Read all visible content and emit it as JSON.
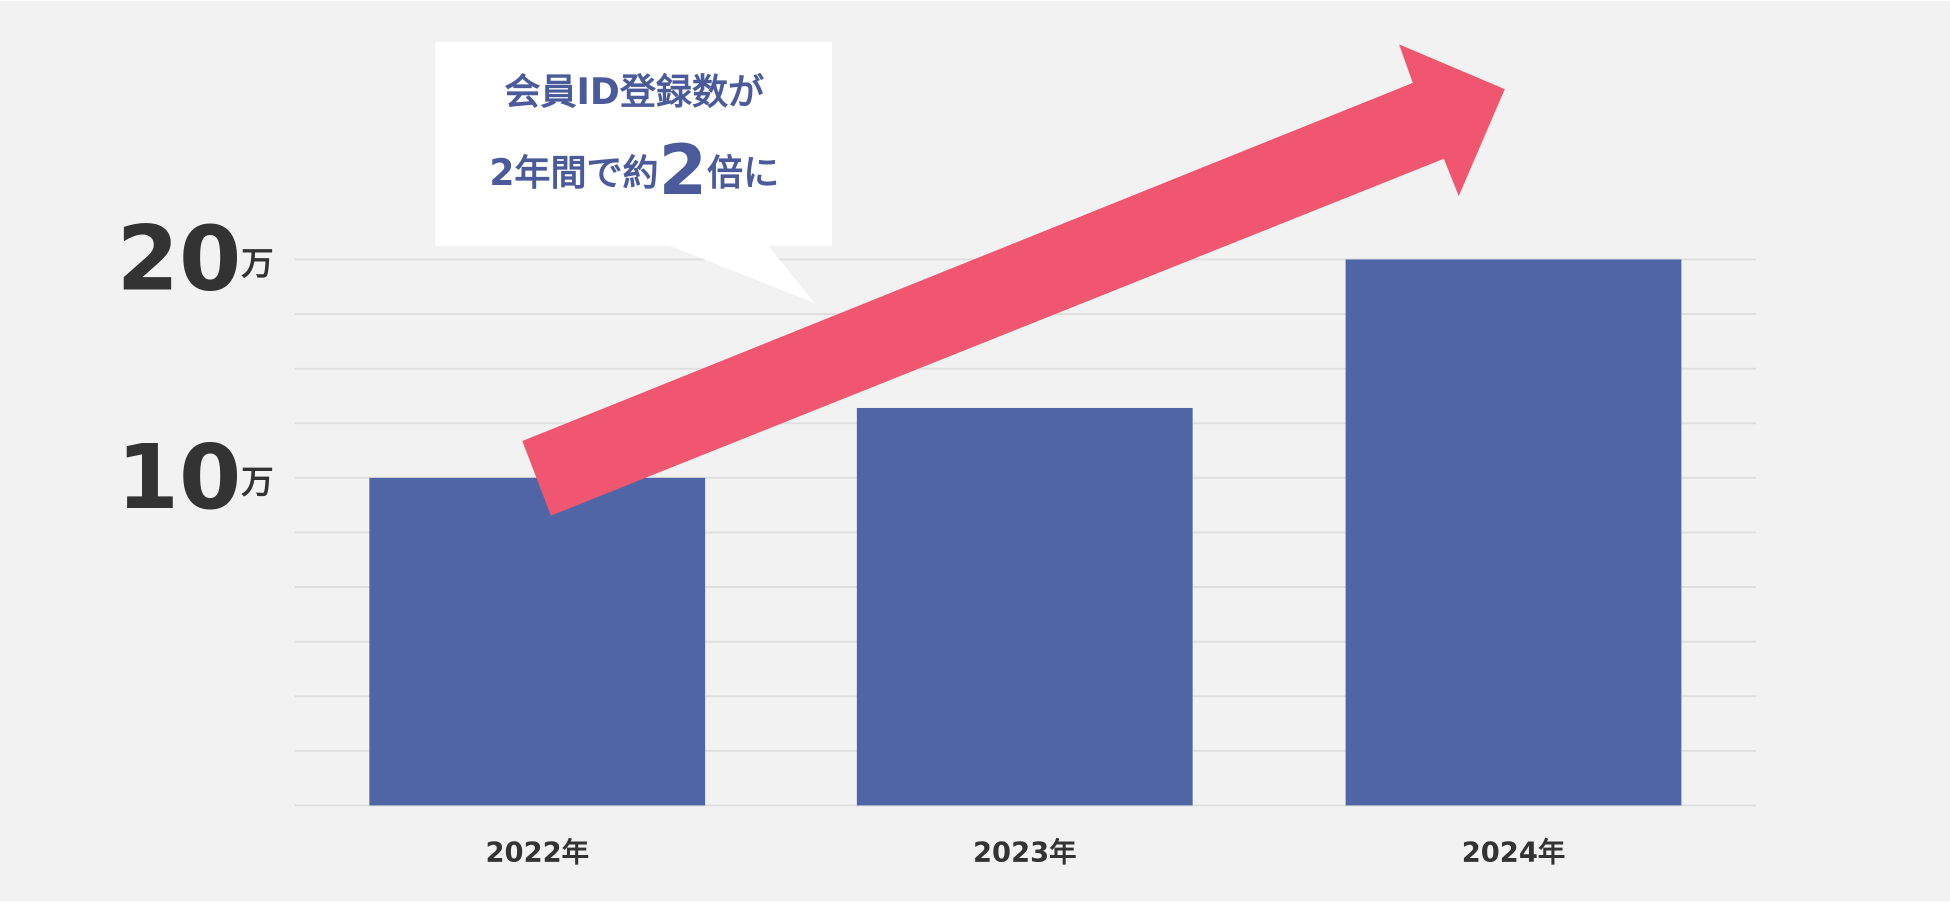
{
  "chart_data": {
    "type": "bar",
    "categories": [
      "2022年",
      "2023年",
      "2024年"
    ],
    "values": [
      10,
      13.2,
      20
    ],
    "color": "#5065a5",
    "ylim": [
      -5,
      20
    ],
    "yticks": [
      {
        "value": 10,
        "label": "10万"
      },
      {
        "value": 20,
        "label": "20万"
      }
    ],
    "minor_yticks": [
      -5,
      -2.5,
      0,
      2.5,
      5,
      7.5,
      10,
      12.5,
      15,
      17.5,
      20
    ],
    "grid": true,
    "annotation": [
      "会員ID登録数が",
      "2年間で約2倍に"
    ]
  }
}
